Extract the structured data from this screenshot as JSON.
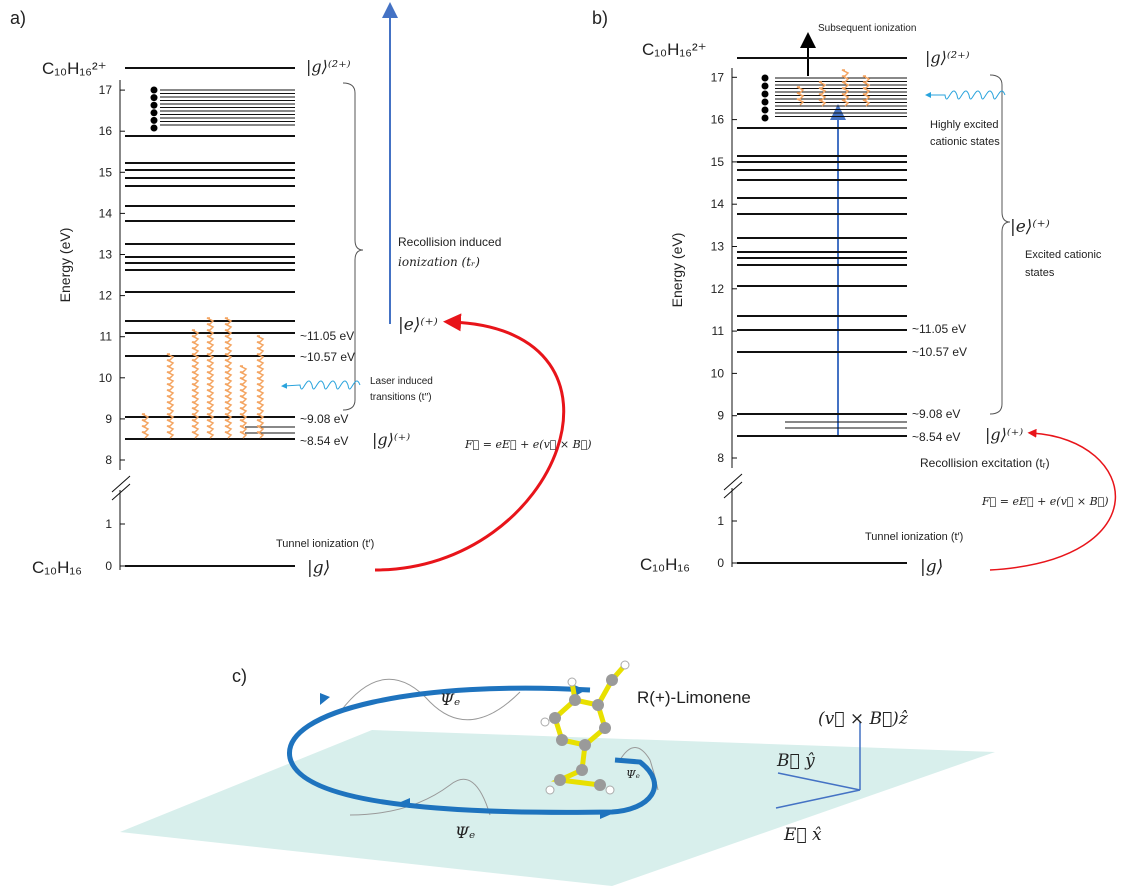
{
  "panel_a": {
    "label": "a)",
    "dication": "C₁₀H₁₆²⁺",
    "dication_state": "|g⟩⁽²⁺⁾",
    "axis_label": "Energy (eV)",
    "yticks_upper": [
      8,
      9,
      10,
      11,
      12,
      13,
      14,
      15,
      16,
      17
    ],
    "yticks_lower": [
      0,
      1
    ],
    "level_labels": [
      "~11.05 eV",
      "~10.57 eV",
      "~9.08 eV",
      "~8.54 eV"
    ],
    "excited_state": "|e⟩⁽⁺⁾",
    "cation_state": "|g⟩⁽⁺⁾",
    "neutral_state": "|g⟩",
    "neutral": "C₁₀H₁₆",
    "recollision": [
      "Recollision induced",
      "ionization (tᵣ)"
    ],
    "laser": [
      "Laser induced",
      "transitions (t′′)"
    ],
    "force": "F⃗ = eE⃗ + e(v⃗ × B⃗)",
    "tunnel": "Tunnel ionization  (t′)"
  },
  "panel_b": {
    "label": "b)",
    "dication": "C₁₀H₁₆²⁺",
    "dication_state": "|g⟩⁽²⁺⁾",
    "axis_label": "Energy (eV)",
    "yticks_upper": [
      8,
      9,
      10,
      11,
      12,
      13,
      14,
      15,
      16,
      17
    ],
    "yticks_lower": [
      0,
      1
    ],
    "level_labels": [
      "~11.05 eV",
      "~10.57 eV",
      "~9.08 eV",
      "~8.54 eV"
    ],
    "subsequent": "Subsequent ionization",
    "highly": [
      "Highly excited",
      "cationic states"
    ],
    "excited_state": "|e⟩⁽⁺⁾",
    "excited": [
      "Excited cationic",
      "states"
    ],
    "cation_state": "|g⟩⁽⁺⁾",
    "recollision": "Recollision excitation (tᵣ)",
    "force": "F⃗ = eE⃗ + e(v⃗ × B⃗)",
    "tunnel": "Tunnel ionization  (t′)",
    "neutral": "C₁₀H₁₆",
    "neutral_state": "|g⟩"
  },
  "panel_c": {
    "label": "c)",
    "psi": [
      "Ψₑ",
      "Ψₑ",
      "Ψₑ"
    ],
    "molecule": "R(+)-Limonene",
    "z_axis": "(v⃗ × B⃗)ẑ",
    "y_axis": "B⃗ ŷ",
    "x_axis": "E⃗ x̂"
  }
}
